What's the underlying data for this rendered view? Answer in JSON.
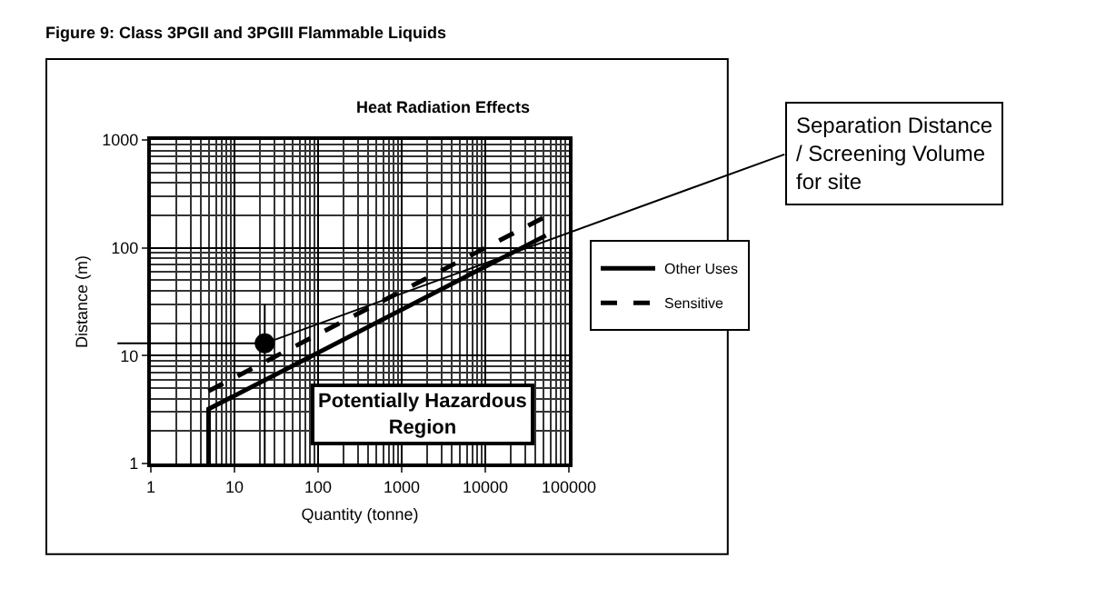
{
  "chart_data": {
    "type": "line",
    "title": "Figure 9: Class 3PGII and 3PGIII Flammable Liquids",
    "subtitle": "Heat Radiation Effects",
    "xlabel": "Quantity (tonne)",
    "ylabel": "Distance (m)",
    "log": "xy",
    "xlim": [
      1,
      100000
    ],
    "ylim": [
      1,
      1000
    ],
    "xticks": [
      1,
      10,
      100,
      1000,
      10000,
      100000
    ],
    "yticks": [
      1,
      10,
      100,
      1000
    ],
    "grid": true,
    "legend": "right",
    "series": [
      {
        "name": "Other Uses",
        "color": "#000000",
        "line_style": "solid",
        "x": [
          4.9,
          4.9,
          53000
        ],
        "values": [
          1,
          3.2,
          130
        ]
      },
      {
        "name": "Sensitive",
        "color": "#000000",
        "line_style": "dashed",
        "x": [
          4.9,
          53000
        ],
        "values": [
          4.7,
          195
        ]
      },
      {
        "type": "scatter",
        "marker": "circle",
        "color": "#000000",
        "x": [
          23
        ],
        "values": [
          13
        ]
      }
    ],
    "ref_lines": [
      {
        "axis": "x",
        "value": 23,
        "color": "#000000"
      },
      {
        "axis": "y",
        "value": 13,
        "color": "#000000"
      }
    ],
    "annotations": [
      "Potentially Hazardous\nRegion",
      {
        "text": "Separation Distance\n/ Screening Volume\nfor site",
        "x": 23,
        "y": 13
      }
    ]
  }
}
